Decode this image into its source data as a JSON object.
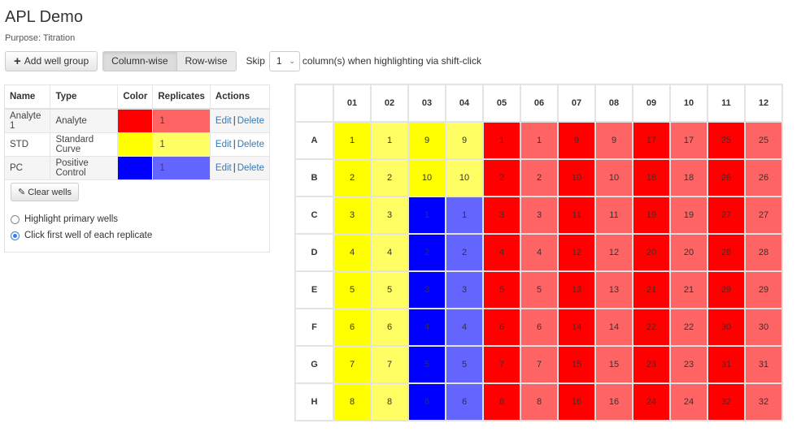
{
  "page": {
    "title": "APL Demo",
    "purpose": "Purpose: Titration"
  },
  "toolbar": {
    "add_group_label": "Add well group",
    "column_wise_label": "Column-wise",
    "row_wise_label": "Row-wise",
    "skip_label": "Skip",
    "skip_value": "1",
    "skip_suffix": "column(s) when highlighting via shift-click"
  },
  "groups_table": {
    "headers": [
      "Name",
      "Type",
      "Color",
      "Replicates",
      "Actions"
    ],
    "rows": [
      {
        "name": "Analyte 1",
        "type": "Analyte",
        "color": "#ff0000",
        "replicate_color": "#ff6464",
        "replicates": "1",
        "edit": "Edit",
        "delete": "Delete"
      },
      {
        "name": "STD",
        "type": "Standard Curve",
        "color": "#ffff00",
        "replicate_color": "#ffff64",
        "replicates": "1",
        "edit": "Edit",
        "delete": "Delete"
      },
      {
        "name": "PC",
        "type": "Positive Control",
        "color": "#0000ff",
        "replicate_color": "#6464ff",
        "replicates": "1",
        "edit": "Edit",
        "delete": "Delete"
      }
    ],
    "separator": "|"
  },
  "controls": {
    "clear_wells_label": "Clear wells",
    "radio_options": [
      {
        "label": "Highlight primary wells",
        "checked": false
      },
      {
        "label": "Click first well of each replicate",
        "checked": true
      }
    ]
  },
  "plate": {
    "columns": [
      "01",
      "02",
      "03",
      "04",
      "05",
      "06",
      "07",
      "08",
      "09",
      "10",
      "11",
      "12"
    ],
    "rows": [
      "A",
      "B",
      "C",
      "D",
      "E",
      "F",
      "G",
      "H"
    ],
    "colors": {
      "Y": "#ffff00",
      "y": "#ffff64",
      "B": "#0000ff",
      "b": "#6464ff",
      "R": "#ff0000",
      "r": "#ff6464",
      "W": "#ffffff"
    },
    "wells": [
      [
        [
          "1",
          "Y"
        ],
        [
          "1",
          "y"
        ],
        [
          "9",
          "Y"
        ],
        [
          "9",
          "y"
        ],
        [
          "1",
          "R"
        ],
        [
          "1",
          "r"
        ],
        [
          "9",
          "R"
        ],
        [
          "9",
          "r"
        ],
        [
          "17",
          "R"
        ],
        [
          "17",
          "r"
        ],
        [
          "25",
          "R"
        ],
        [
          "25",
          "r"
        ]
      ],
      [
        [
          "2",
          "Y"
        ],
        [
          "2",
          "y"
        ],
        [
          "10",
          "Y"
        ],
        [
          "10",
          "y"
        ],
        [
          "2",
          "R"
        ],
        [
          "2",
          "r"
        ],
        [
          "10",
          "R"
        ],
        [
          "10",
          "r"
        ],
        [
          "18",
          "R"
        ],
        [
          "18",
          "r"
        ],
        [
          "26",
          "R"
        ],
        [
          "26",
          "r"
        ]
      ],
      [
        [
          "3",
          "Y"
        ],
        [
          "3",
          "y"
        ],
        [
          "1",
          "B"
        ],
        [
          "1",
          "b"
        ],
        [
          "3",
          "R"
        ],
        [
          "3",
          "r"
        ],
        [
          "11",
          "R"
        ],
        [
          "11",
          "r"
        ],
        [
          "19",
          "R"
        ],
        [
          "19",
          "r"
        ],
        [
          "27",
          "R"
        ],
        [
          "27",
          "r"
        ]
      ],
      [
        [
          "4",
          "Y"
        ],
        [
          "4",
          "y"
        ],
        [
          "2",
          "B"
        ],
        [
          "2",
          "b"
        ],
        [
          "4",
          "R"
        ],
        [
          "4",
          "r"
        ],
        [
          "12",
          "R"
        ],
        [
          "12",
          "r"
        ],
        [
          "20",
          "R"
        ],
        [
          "20",
          "r"
        ],
        [
          "28",
          "R"
        ],
        [
          "28",
          "r"
        ]
      ],
      [
        [
          "5",
          "Y"
        ],
        [
          "5",
          "y"
        ],
        [
          "3",
          "B"
        ],
        [
          "3",
          "b"
        ],
        [
          "5",
          "R"
        ],
        [
          "5",
          "r"
        ],
        [
          "13",
          "R"
        ],
        [
          "13",
          "r"
        ],
        [
          "21",
          "R"
        ],
        [
          "21",
          "r"
        ],
        [
          "29",
          "R"
        ],
        [
          "29",
          "r"
        ]
      ],
      [
        [
          "6",
          "Y"
        ],
        [
          "6",
          "y"
        ],
        [
          "4",
          "B"
        ],
        [
          "4",
          "b"
        ],
        [
          "6",
          "R"
        ],
        [
          "6",
          "r"
        ],
        [
          "14",
          "R"
        ],
        [
          "14",
          "r"
        ],
        [
          "22",
          "R"
        ],
        [
          "22",
          "r"
        ],
        [
          "30",
          "R"
        ],
        [
          "30",
          "r"
        ]
      ],
      [
        [
          "7",
          "Y"
        ],
        [
          "7",
          "y"
        ],
        [
          "5",
          "B"
        ],
        [
          "5",
          "b"
        ],
        [
          "7",
          "R"
        ],
        [
          "7",
          "r"
        ],
        [
          "15",
          "R"
        ],
        [
          "15",
          "r"
        ],
        [
          "23",
          "R"
        ],
        [
          "23",
          "r"
        ],
        [
          "31",
          "R"
        ],
        [
          "31",
          "r"
        ]
      ],
      [
        [
          "8",
          "Y"
        ],
        [
          "8",
          "y"
        ],
        [
          "6",
          "B"
        ],
        [
          "6",
          "b"
        ],
        [
          "8",
          "R"
        ],
        [
          "8",
          "r"
        ],
        [
          "16",
          "R"
        ],
        [
          "16",
          "r"
        ],
        [
          "24",
          "R"
        ],
        [
          "24",
          "r"
        ],
        [
          "32",
          "R"
        ],
        [
          "32",
          "r"
        ]
      ]
    ]
  }
}
